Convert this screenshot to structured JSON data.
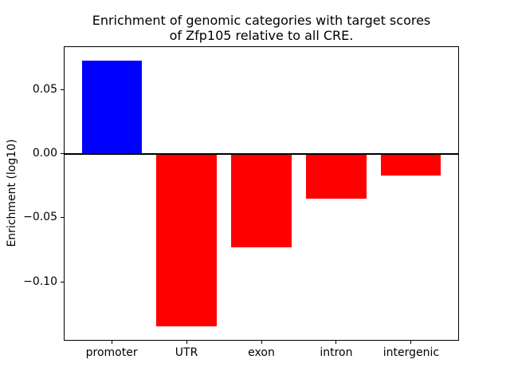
{
  "figure": {
    "background": "#ffffff",
    "title_lines": [
      "Enrichment of genomic categories with target scores",
      "of Zfp105 relative to all CRE."
    ]
  },
  "chart_data": {
    "type": "bar",
    "title": "Enrichment of genomic categories with target scores of Zfp105 relative to all CRE.",
    "categories": [
      "promoter",
      "UTR",
      "exon",
      "intron",
      "intergenic"
    ],
    "values": [
      0.073,
      -0.135,
      -0.073,
      -0.035,
      -0.017
    ],
    "bar_colors": [
      "#0000ff",
      "#ff0000",
      "#ff0000",
      "#ff0000",
      "#ff0000"
    ],
    "positive_color": "#0000ff",
    "negative_color": "#ff0000",
    "xlabel": "",
    "ylabel": "Enrichment (log10)",
    "yticks": [
      0.05,
      0.0,
      -0.05,
      -0.1
    ],
    "ytick_labels": [
      "0.05",
      "0.00",
      "−0.05",
      "−0.10"
    ],
    "ylim": [
      -0.146,
      0.084
    ],
    "xlim": [
      -0.64,
      4.64
    ],
    "bar_width": 0.8,
    "zero_line": true,
    "grid": false,
    "legend": false,
    "axis_color": "#000000",
    "background_color": "#ffffff"
  }
}
